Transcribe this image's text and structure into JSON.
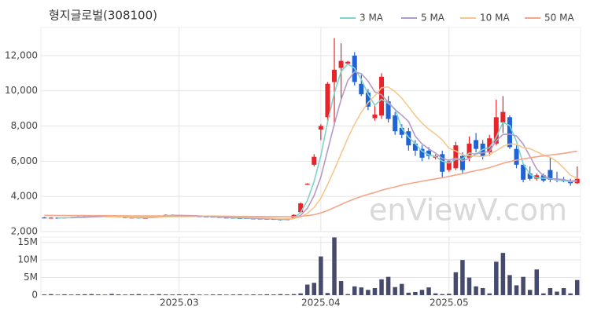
{
  "chart_data": {
    "type": "candlestick",
    "title": "형지글로벌(308100)",
    "watermark": "enViewV.com",
    "up_color": "#e8242b",
    "down_color": "#1f63d6",
    "grid": true,
    "legend": "top-right",
    "ylim": [
      2000,
      13600
    ],
    "yticks": [
      {
        "value": 2000,
        "label": "2,000"
      },
      {
        "value": 4000,
        "label": "4,000"
      },
      {
        "value": 6000,
        "label": "6,000"
      },
      {
        "value": 8000,
        "label": "8,000"
      },
      {
        "value": 10000,
        "label": "10,000"
      },
      {
        "value": 12000,
        "label": "12,000"
      }
    ],
    "xticks": [
      {
        "value": 20,
        "label": "2025.03"
      },
      {
        "value": 41,
        "label": "2025.04"
      },
      {
        "value": 60,
        "label": "2025.05"
      }
    ],
    "open": [
      2800,
      2770,
      2790,
      2770,
      2800,
      2820,
      2860,
      2840,
      2890,
      2880,
      2880,
      2850,
      2820,
      2780,
      2800,
      2760,
      2800,
      2870,
      2900,
      2960,
      2920,
      2900,
      2880,
      2870,
      2860,
      2850,
      2830,
      2800,
      2790,
      2770,
      2770,
      2750,
      2740,
      2730,
      2720,
      2700,
      2660,
      2750,
      3100,
      4700,
      5800,
      7800,
      8500,
      10500,
      11300,
      11550,
      12000,
      10400,
      9900,
      8450,
      8600,
      9400,
      8600,
      7900,
      7700,
      7000,
      6700,
      6600,
      6200,
      6400,
      5500,
      5600,
      6300,
      6200,
      7200,
      7000,
      6500,
      7000,
      8200,
      8500,
      6700,
      5800,
      5300,
      5000,
      5200,
      5500,
      5000,
      4950,
      4900,
      4750
    ],
    "high": [
      2830,
      2810,
      2810,
      2820,
      2830,
      2870,
      2880,
      2900,
      2910,
      2920,
      2900,
      2870,
      2840,
      2820,
      2820,
      2800,
      2870,
      2920,
      2970,
      2980,
      2940,
      2920,
      2900,
      2890,
      2880,
      2870,
      2850,
      2820,
      2810,
      2790,
      2780,
      2770,
      2760,
      2750,
      2740,
      2720,
      2720,
      2980,
      3650,
      4750,
      6400,
      8100,
      10500,
      13000,
      12700,
      11700,
      12200,
      10900,
      10100,
      9200,
      11000,
      9700,
      8800,
      8100,
      7900,
      7200,
      6900,
      6800,
      6400,
      6600,
      6100,
      7100,
      6500,
      7400,
      7600,
      7200,
      7500,
      9500,
      9700,
      8600,
      6900,
      5900,
      5700,
      5300,
      5300,
      6200,
      5400,
      5100,
      5000,
      5700
    ],
    "low": [
      2760,
      2750,
      2740,
      2750,
      2780,
      2800,
      2810,
      2820,
      2850,
      2860,
      2830,
      2800,
      2760,
      2760,
      2740,
      2740,
      2780,
      2850,
      2880,
      2910,
      2880,
      2860,
      2850,
      2840,
      2830,
      2810,
      2780,
      2770,
      2750,
      2740,
      2730,
      2720,
      2710,
      2700,
      2680,
      2630,
      2640,
      2740,
      3050,
      4650,
      5700,
      7200,
      8300,
      8000,
      9500,
      11500,
      10300,
      9700,
      8900,
      8300,
      8400,
      8200,
      7500,
      7300,
      6600,
      6300,
      6000,
      6100,
      6100,
      5100,
      5400,
      5500,
      5300,
      6000,
      6500,
      6100,
      6300,
      6900,
      7600,
      6700,
      5600,
      4800,
      4900,
      4900,
      4800,
      4800,
      4800,
      4800,
      4600,
      4700
    ],
    "close": [
      2780,
      2790,
      2760,
      2800,
      2810,
      2850,
      2830,
      2880,
      2870,
      2900,
      2850,
      2820,
      2780,
      2800,
      2760,
      2780,
      2850,
      2900,
      2950,
      2930,
      2900,
      2880,
      2870,
      2860,
      2850,
      2830,
      2800,
      2790,
      2770,
      2760,
      2750,
      2740,
      2730,
      2720,
      2700,
      2650,
      2700,
      2950,
      3600,
      4720,
      6250,
      8000,
      10400,
      11200,
      11700,
      11650,
      10500,
      9800,
      9100,
      8650,
      10800,
      8400,
      7700,
      7500,
      6900,
      6600,
      6200,
      6300,
      6300,
      5400,
      6000,
      6900,
      5500,
      7000,
      6700,
      6300,
      7300,
      8500,
      8800,
      6800,
      5800,
      4950,
      5000,
      5200,
      4900,
      4950,
      4900,
      4850,
      4750,
      5000
    ],
    "series": [
      {
        "name": "3 MA",
        "color": "#7fd3cc",
        "values": [
          null,
          null,
          2777,
          2783,
          2790,
          2820,
          2830,
          2853,
          2860,
          2883,
          2873,
          2857,
          2817,
          2800,
          2780,
          2780,
          2797,
          2843,
          2900,
          2927,
          2927,
          2903,
          2883,
          2870,
          2860,
          2847,
          2827,
          2807,
          2787,
          2773,
          2760,
          2750,
          2740,
          2730,
          2717,
          2690,
          2683,
          2767,
          3083,
          3757,
          4857,
          6323,
          8217,
          9867,
          11100,
          11517,
          11283,
          10650,
          9800,
          9183,
          9517,
          9283,
          8967,
          7867,
          7367,
          7000,
          6567,
          6367,
          6267,
          6000,
          5900,
          6100,
          6133,
          6467,
          6400,
          6667,
          6767,
          7367,
          8200,
          8033,
          7133,
          5850,
          5250,
          5050,
          5033,
          5017,
          4917,
          4900,
          4833,
          4867
        ]
      },
      {
        "name": "5 MA",
        "color": "#b39bc8",
        "values": [
          null,
          null,
          null,
          null,
          2788,
          2802,
          2810,
          2834,
          2848,
          2866,
          2866,
          2864,
          2844,
          2830,
          2802,
          2788,
          2794,
          2818,
          2848,
          2882,
          2906,
          2912,
          2906,
          2888,
          2872,
          2858,
          2842,
          2826,
          2808,
          2790,
          2774,
          2762,
          2750,
          2740,
          2728,
          2708,
          2700,
          2744,
          2920,
          3324,
          4044,
          5104,
          6594,
          8114,
          9510,
          10590,
          11090,
          10970,
          10550,
          9940,
          9770,
          9350,
          8930,
          8610,
          8260,
          7420,
          6980,
          6700,
          6460,
          6160,
          6040,
          6180,
          6020,
          6160,
          6420,
          6480,
          6560,
          7160,
          7520,
          7540,
          7440,
          6970,
          6270,
          5550,
          5170,
          5000,
          4990,
          4960,
          4870,
          4890
        ]
      },
      {
        "name": "10 MA",
        "color": "#f3c98f",
        "values": [
          null,
          null,
          null,
          null,
          null,
          null,
          null,
          null,
          null,
          2827,
          2834,
          2837,
          2839,
          2839,
          2834,
          2827,
          2829,
          2831,
          2839,
          2842,
          2847,
          2853,
          2862,
          2868,
          2877,
          2882,
          2877,
          2866,
          2848,
          2831,
          2816,
          2802,
          2788,
          2774,
          2759,
          2741,
          2731,
          2747,
          2830,
          3026,
          3376,
          3902,
          4669,
          5517,
          6417,
          7317,
          8097,
          8782,
          9332,
          9725,
          10180,
          10220,
          9950,
          9580,
          9100,
          8595,
          8165,
          7815,
          7535,
          7210,
          6730,
          6580,
          6360,
          6310,
          6290,
          6260,
          6370,
          6590,
          6840,
          6980,
          6960,
          6765,
          6715,
          6535,
          6355,
          6220,
          5980,
          5615,
          5210,
          5030
        ]
      },
      {
        "name": "50 MA",
        "color": "#f4a58a",
        "values": [
          2920,
          2918,
          2916,
          2914,
          2912,
          2910,
          2908,
          2906,
          2904,
          2902,
          2900,
          2898,
          2896,
          2894,
          2892,
          2890,
          2888,
          2886,
          2884,
          2882,
          2880,
          2878,
          2876,
          2874,
          2872,
          2870,
          2868,
          2866,
          2864,
          2862,
          2860,
          2858,
          2856,
          2854,
          2852,
          2850,
          2848,
          2855,
          2870,
          2905,
          2960,
          3060,
          3200,
          3370,
          3540,
          3710,
          3860,
          4000,
          4120,
          4220,
          4350,
          4450,
          4540,
          4640,
          4720,
          4790,
          4860,
          4930,
          5000,
          5060,
          5130,
          5220,
          5290,
          5380,
          5460,
          5540,
          5630,
          5750,
          5880,
          5980,
          6060,
          6130,
          6190,
          6250,
          6300,
          6350,
          6400,
          6450,
          6510,
          6570
        ]
      }
    ],
    "volume": {
      "color": "#464a6c",
      "ylim": [
        0,
        16500000
      ],
      "yticks": [
        0,
        {
          "value": 5000000,
          "label": "5M"
        },
        {
          "value": 10000000,
          "label": "10M"
        },
        {
          "value": 15000000,
          "label": "15M"
        }
      ],
      "values": [
        200000,
        300000,
        150000,
        250000,
        180000,
        220000,
        260000,
        300000,
        200000,
        170000,
        350000,
        220000,
        180000,
        250000,
        300000,
        160000,
        240000,
        280000,
        200000,
        190000,
        230000,
        210000,
        260000,
        180000,
        150000,
        200000,
        220000,
        170000,
        190000,
        240000,
        160000,
        210000,
        180000,
        250000,
        200000,
        300000,
        220000,
        300000,
        500000,
        3000000,
        3500000,
        11000000,
        600000,
        16400000,
        4000000,
        300000,
        2500000,
        2200000,
        1500000,
        2000000,
        4500000,
        5200000,
        2300000,
        3200000,
        700000,
        900000,
        1500000,
        2200000,
        500000,
        300000,
        400000,
        6500000,
        10000000,
        5000000,
        2500000,
        2000000,
        500000,
        9500000,
        12000000,
        5700000,
        2800000,
        5200000,
        1500000,
        7300000,
        500000,
        2000000,
        1000000,
        2000000,
        500000,
        4300000
      ]
    }
  }
}
